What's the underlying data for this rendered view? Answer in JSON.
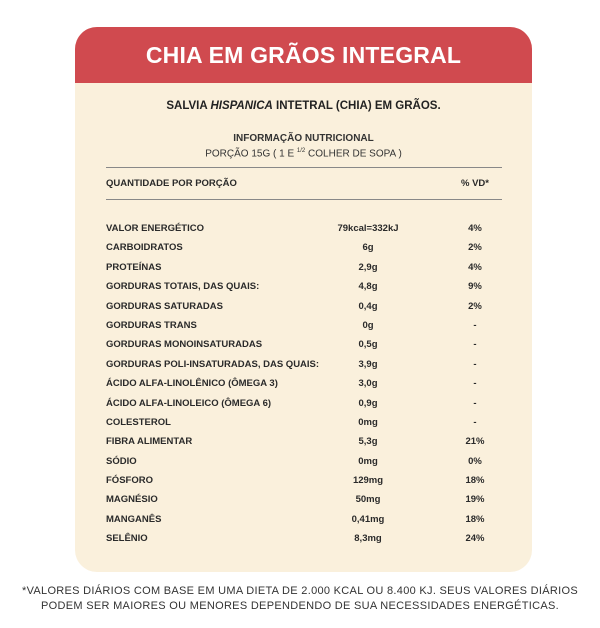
{
  "header": {
    "title": "CHIA EM GRÃOS INTEGRAL"
  },
  "subtitle": {
    "before": "SALVIA ",
    "italic": "HISPANICA",
    "after": " INTETRAL (CHIA) EM GRÃOS."
  },
  "info": {
    "title": "INFORMAÇÃO NUTRICIONAL",
    "portion_a": "PORÇÃO 15G ( 1 E ",
    "portion_frac": "1/2",
    "portion_b": " COLHER DE SOPA )"
  },
  "table": {
    "col_quantity": "QUANTIDADE POR PORÇÃO",
    "col_vd": "% VD*",
    "rows": [
      {
        "name": "VALOR ENERGÉTICO",
        "amount": "79kcal=332kJ",
        "vd": "4%"
      },
      {
        "name": "CARBOIDRATOS",
        "amount": "6g",
        "vd": "2%"
      },
      {
        "name": "PROTEÍNAS",
        "amount": "2,9g",
        "vd": "4%"
      },
      {
        "name": "GORDURAS TOTAIS, DAS QUAIS:",
        "amount": "4,8g",
        "vd": "9%"
      },
      {
        "name": "GORDURAS SATURADAS",
        "amount": "0,4g",
        "vd": "2%"
      },
      {
        "name": "GORDURAS TRANS",
        "amount": "0g",
        "vd": "-"
      },
      {
        "name": "GORDURAS MONOINSATURADAS",
        "amount": "0,5g",
        "vd": "-"
      },
      {
        "name": "GORDURAS POLI-INSATURADAS, DAS QUAIS:",
        "amount": "3,9g",
        "vd": "-"
      },
      {
        "name": "ÁCIDO ALFA-LINOLÊNICO (ÔMEGA 3)",
        "amount": "3,0g",
        "vd": "-"
      },
      {
        "name": "ÁCIDO ALFA-LINOLEICO (ÔMEGA 6)",
        "amount": "0,9g",
        "vd": "-"
      },
      {
        "name": "COLESTEROL",
        "amount": "0mg",
        "vd": "-"
      },
      {
        "name": "FIBRA ALIMENTAR",
        "amount": "5,3g",
        "vd": "21%"
      },
      {
        "name": "SÓDIO",
        "amount": "0mg",
        "vd": "0%"
      },
      {
        "name": "FÓSFORO",
        "amount": "129mg",
        "vd": "18%"
      },
      {
        "name": "MAGNÉSIO",
        "amount": "50mg",
        "vd": "19%"
      },
      {
        "name": "MANGANÊS",
        "amount": "0,41mg",
        "vd": "18%"
      },
      {
        "name": "SELÊNIO",
        "amount": "8,3mg",
        "vd": "24%"
      }
    ]
  },
  "footnote": {
    "line1": "*VALORES DIÁRIOS COM BASE EM UMA DIETA DE 2.000 KCAL OU 8.400 KJ. SEUS VALORES DIÁRIOS",
    "line2": "PODEM SER MAIORES OU MENORES DEPENDENDO DE SUA NECESSIDADES ENERGÉTICAS."
  },
  "colors": {
    "header_bg": "#d04a4f",
    "card_bg": "#faf0dc"
  }
}
